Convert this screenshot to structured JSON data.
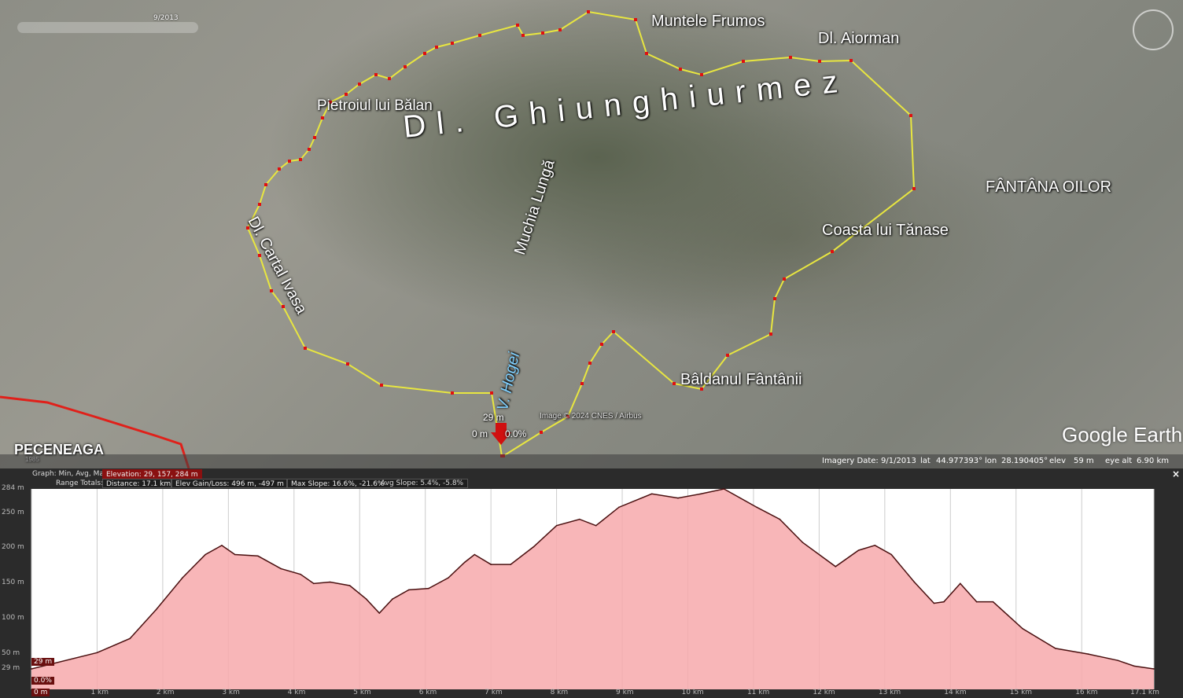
{
  "map": {
    "time_slider_date": "9/2013",
    "labels": {
      "main_ridge": "Dl. Ghiunghiurmez",
      "muntele_frumos": "Muntele Frumos",
      "dl_aiorman": "Dl. Aiorman",
      "pietroiul": "Pietroiul lui Bălan",
      "muchia_lunga": "Muchia Lungă",
      "cartal_ivasa": "Dl. Cartal Ivasa",
      "fantana_oilor": "FÂNTÂNA OILOR",
      "coasta": "Coasta lui Tănase",
      "baldanul": "Bâldanul Fântânii",
      "v_hogei": "V. Hogei",
      "peceneaga": "PECENEAGA"
    },
    "cursor_elev": "29 m",
    "cursor_dist": "0 m",
    "cursor_slope": "0.0%",
    "copyright": "Image © 2024 CNES / Airbus",
    "year_badge": "1985",
    "route_color": "#e8e640",
    "track_color": "#e0201a",
    "logo": "Google Earth"
  },
  "status": {
    "imagery_date": "Imagery Date: 9/1/2013",
    "lat_label": "lat",
    "lat": "44.977393°",
    "lon_label": "lon",
    "lon": "28.190405°",
    "elev_label": "elev",
    "elev": "59 m",
    "eye_label": "eye alt",
    "eye": "6.90 km"
  },
  "profile_header": {
    "graph_label": "Graph: Min, Avg, Max",
    "elevation": "Elevation: 29, 157, 284 m",
    "range_label": "Range Totals:",
    "distance": "Distance: 17.1 km",
    "gain_loss": "Elev Gain/Loss: 496 m, -497 m",
    "max_slope": "Max Slope: 16.6%, -21.6%",
    "avg_slope": "Avg Slope: 5.4%, -5.8%",
    "close": "×"
  },
  "chart_data": {
    "type": "area",
    "xlabel": "",
    "ylabel": "",
    "xlim": [
      0,
      17.1
    ],
    "ylim": [
      0,
      284
    ],
    "grid": true,
    "y_ticks": [
      "284 m",
      "250 m",
      "200 m",
      "150 m",
      "100 m",
      "50 m",
      "29 m"
    ],
    "y_tick_values": [
      284,
      250,
      200,
      150,
      100,
      50,
      29
    ],
    "x_ticks": [
      "0 m",
      "1 km",
      "2 km",
      "3 km",
      "4 km",
      "5 km",
      "6 km",
      "7 km",
      "8 km",
      "9 km",
      "10 km",
      "11 km",
      "12 km",
      "13 km",
      "14 km",
      "15 km",
      "16 km",
      "17.1 km"
    ],
    "x_tick_values": [
      0,
      1,
      2,
      3,
      4,
      5,
      6,
      7,
      8,
      9,
      10,
      11,
      12,
      13,
      14,
      15,
      16,
      17.1
    ],
    "cursor_labels": {
      "elev": "29 m",
      "slope": "0.0%",
      "dist": "0 m"
    },
    "fill_color": "#f7a9ab",
    "line_color": "#4a1010",
    "x": [
      0,
      1,
      1.5,
      1.9,
      2.3,
      2.65,
      2.9,
      3.1,
      3.45,
      3.8,
      4.1,
      4.3,
      4.55,
      4.85,
      5.1,
      5.3,
      5.5,
      5.75,
      6.05,
      6.35,
      6.6,
      6.75,
      7.0,
      7.3,
      7.65,
      8.0,
      8.35,
      8.6,
      8.95,
      9.45,
      9.85,
      10.2,
      10.55,
      11.05,
      11.4,
      11.75,
      12.25,
      12.6,
      12.85,
      13.1,
      13.45,
      13.75,
      13.9,
      14.15,
      14.4,
      14.65,
      15.1,
      15.6,
      16.1,
      16.55,
      16.8,
      17.1
    ],
    "y": [
      29,
      52,
      72,
      113,
      158,
      191,
      204,
      191,
      189,
      171,
      163,
      150,
      152,
      147,
      128,
      108,
      128,
      141,
      143,
      158,
      180,
      191,
      177,
      177,
      202,
      232,
      241,
      232,
      258,
      277,
      271,
      277,
      284,
      258,
      241,
      208,
      174,
      197,
      204,
      191,
      152,
      122,
      124,
      150,
      124,
      124,
      86,
      58,
      50,
      41,
      33,
      29
    ]
  }
}
